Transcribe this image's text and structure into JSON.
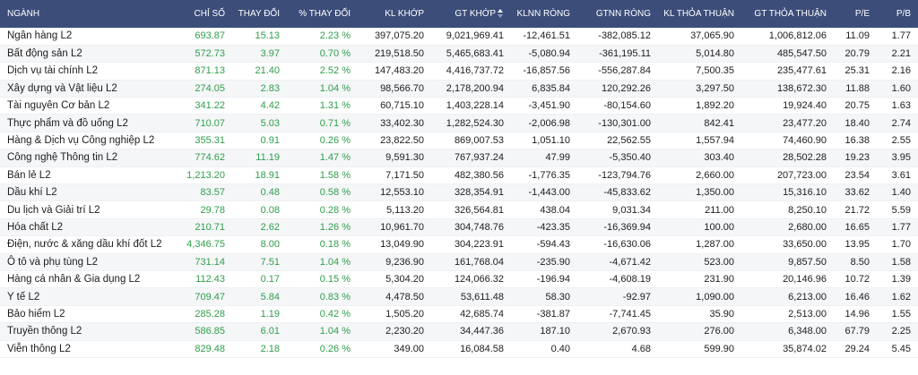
{
  "headers": {
    "sector": "NGÀNH",
    "index": "CHỈ SỐ",
    "change": "THAY ĐỔI",
    "pct_change": "% THAY ĐỔI",
    "kl_khop": "KL KHỚP",
    "gt_khop": "GT KHỚP",
    "klnn_rong": "KLNN RÒNG",
    "gtnn_rong": "GTNN RÒNG",
    "kl_thoa_thuan": "KL THỎA THUẬN",
    "gt_thoa_thuan": "GT THỎA THUẬN",
    "pe": "P/E",
    "pb": "P/B"
  },
  "sort": {
    "column": "gt_khop",
    "icon": "sort-icon"
  },
  "colors": {
    "header_bg": "#3c4d7a",
    "up": "#2e9e4a",
    "row_alt": "#f5f6f8"
  },
  "rows": [
    {
      "sector": "Ngân hàng L2",
      "index": "693.87",
      "change": "15.13",
      "pct": "2.23 %",
      "kl_khop": "397,075.20",
      "gt_khop": "9,021,969.41",
      "klnn": "-12,461.51",
      "gtnn": "-382,085.12",
      "kl_tt": "37,065.90",
      "gt_tt": "1,006,812.06",
      "pe": "11.09",
      "pb": "1.77"
    },
    {
      "sector": "Bất động sản L2",
      "index": "572.73",
      "change": "3.97",
      "pct": "0.70 %",
      "kl_khop": "219,518.50",
      "gt_khop": "5,465,683.41",
      "klnn": "-5,080.94",
      "gtnn": "-361,195.11",
      "kl_tt": "5,014.80",
      "gt_tt": "485,547.50",
      "pe": "20.79",
      "pb": "2.21"
    },
    {
      "sector": "Dịch vụ tài chính L2",
      "index": "871.13",
      "change": "21.40",
      "pct": "2.52 %",
      "kl_khop": "147,483.20",
      "gt_khop": "4,416,737.72",
      "klnn": "-16,857.56",
      "gtnn": "-556,287.84",
      "kl_tt": "7,500.35",
      "gt_tt": "235,477.61",
      "pe": "25.31",
      "pb": "2.16"
    },
    {
      "sector": "Xây dựng và Vật liệu L2",
      "index": "274.05",
      "change": "2.83",
      "pct": "1.04 %",
      "kl_khop": "98,566.70",
      "gt_khop": "2,178,200.94",
      "klnn": "6,835.84",
      "gtnn": "120,292.26",
      "kl_tt": "3,297.50",
      "gt_tt": "138,672.30",
      "pe": "11.88",
      "pb": "1.60"
    },
    {
      "sector": "Tài nguyên Cơ bản L2",
      "index": "341.22",
      "change": "4.42",
      "pct": "1.31 %",
      "kl_khop": "60,715.10",
      "gt_khop": "1,403,228.14",
      "klnn": "-3,451.90",
      "gtnn": "-80,154.60",
      "kl_tt": "1,892.20",
      "gt_tt": "19,924.40",
      "pe": "20.75",
      "pb": "1.63"
    },
    {
      "sector": "Thực phẩm và đồ uống L2",
      "index": "710.07",
      "change": "5.03",
      "pct": "0.71 %",
      "kl_khop": "33,402.30",
      "gt_khop": "1,282,524.30",
      "klnn": "-2,006.98",
      "gtnn": "-130,301.00",
      "kl_tt": "842.41",
      "gt_tt": "23,477.20",
      "pe": "18.40",
      "pb": "2.74"
    },
    {
      "sector": "Hàng & Dịch vụ Công nghiệp L2",
      "index": "355.31",
      "change": "0.91",
      "pct": "0.26 %",
      "kl_khop": "23,822.50",
      "gt_khop": "869,007.53",
      "klnn": "1,051.10",
      "gtnn": "22,562.55",
      "kl_tt": "1,557.94",
      "gt_tt": "74,460.90",
      "pe": "16.38",
      "pb": "2.55"
    },
    {
      "sector": "Công nghệ Thông tin L2",
      "index": "774.62",
      "change": "11.19",
      "pct": "1.47 %",
      "kl_khop": "9,591.30",
      "gt_khop": "767,937.24",
      "klnn": "47.99",
      "gtnn": "-5,350.40",
      "kl_tt": "303.40",
      "gt_tt": "28,502.28",
      "pe": "19.23",
      "pb": "3.95"
    },
    {
      "sector": "Bán lẻ L2",
      "index": "1,213.20",
      "change": "18.91",
      "pct": "1.58 %",
      "kl_khop": "7,171.50",
      "gt_khop": "482,380.56",
      "klnn": "-1,776.35",
      "gtnn": "-123,794.76",
      "kl_tt": "2,660.00",
      "gt_tt": "207,723.00",
      "pe": "23.54",
      "pb": "3.61"
    },
    {
      "sector": "Dầu khí L2",
      "index": "83.57",
      "change": "0.48",
      "pct": "0.58 %",
      "kl_khop": "12,553.10",
      "gt_khop": "328,354.91",
      "klnn": "-1,443.00",
      "gtnn": "-45,833.62",
      "kl_tt": "1,350.00",
      "gt_tt": "15,316.10",
      "pe": "33.62",
      "pb": "1.40"
    },
    {
      "sector": "Du lịch và Giải trí L2",
      "index": "29.78",
      "change": "0.08",
      "pct": "0.28 %",
      "kl_khop": "5,113.20",
      "gt_khop": "326,564.81",
      "klnn": "438.04",
      "gtnn": "9,031.34",
      "kl_tt": "211.00",
      "gt_tt": "8,250.10",
      "pe": "21.72",
      "pb": "5.59"
    },
    {
      "sector": "Hóa chất L2",
      "index": "210.71",
      "change": "2.62",
      "pct": "1.26 %",
      "kl_khop": "10,961.70",
      "gt_khop": "304,748.76",
      "klnn": "-423.35",
      "gtnn": "-16,369.94",
      "kl_tt": "100.00",
      "gt_tt": "2,680.00",
      "pe": "16.65",
      "pb": "1.77"
    },
    {
      "sector": "Điện, nước & xăng dầu khí đốt L2",
      "index": "4,346.75",
      "change": "8.00",
      "pct": "0.18 %",
      "kl_khop": "13,049.90",
      "gt_khop": "304,223.91",
      "klnn": "-594.43",
      "gtnn": "-16,630.06",
      "kl_tt": "1,287.00",
      "gt_tt": "33,650.00",
      "pe": "13.95",
      "pb": "1.70"
    },
    {
      "sector": "Ô tô và phụ tùng L2",
      "index": "731.14",
      "change": "7.51",
      "pct": "1.04 %",
      "kl_khop": "9,236.90",
      "gt_khop": "161,768.04",
      "klnn": "-235.90",
      "gtnn": "-4,671.42",
      "kl_tt": "523.00",
      "gt_tt": "9,857.50",
      "pe": "8.50",
      "pb": "1.58"
    },
    {
      "sector": "Hàng cá nhân & Gia dụng L2",
      "index": "112.43",
      "change": "0.17",
      "pct": "0.15 %",
      "kl_khop": "5,304.20",
      "gt_khop": "124,066.32",
      "klnn": "-196.94",
      "gtnn": "-4,608.19",
      "kl_tt": "231.90",
      "gt_tt": "20,146.96",
      "pe": "10.72",
      "pb": "1.39"
    },
    {
      "sector": "Y tế L2",
      "index": "709.47",
      "change": "5.84",
      "pct": "0.83 %",
      "kl_khop": "4,478.50",
      "gt_khop": "53,611.48",
      "klnn": "58.30",
      "gtnn": "-92.97",
      "kl_tt": "1,090.00",
      "gt_tt": "6,213.00",
      "pe": "16.46",
      "pb": "1.62"
    },
    {
      "sector": "Bảo hiểm L2",
      "index": "285.28",
      "change": "1.19",
      "pct": "0.42 %",
      "kl_khop": "1,505.20",
      "gt_khop": "42,685.74",
      "klnn": "-381.87",
      "gtnn": "-7,741.45",
      "kl_tt": "35.90",
      "gt_tt": "2,513.00",
      "pe": "14.96",
      "pb": "1.55"
    },
    {
      "sector": "Truyền thông L2",
      "index": "586.85",
      "change": "6.01",
      "pct": "1.04 %",
      "kl_khop": "2,230.20",
      "gt_khop": "34,447.36",
      "klnn": "187.10",
      "gtnn": "2,670.93",
      "kl_tt": "276.00",
      "gt_tt": "6,348.00",
      "pe": "67.79",
      "pb": "2.25"
    },
    {
      "sector": "Viễn thông L2",
      "index": "829.48",
      "change": "2.18",
      "pct": "0.26 %",
      "kl_khop": "349.00",
      "gt_khop": "16,084.58",
      "klnn": "0.40",
      "gtnn": "4.68",
      "kl_tt": "599.90",
      "gt_tt": "35,874.02",
      "pe": "29.24",
      "pb": "5.45"
    }
  ]
}
